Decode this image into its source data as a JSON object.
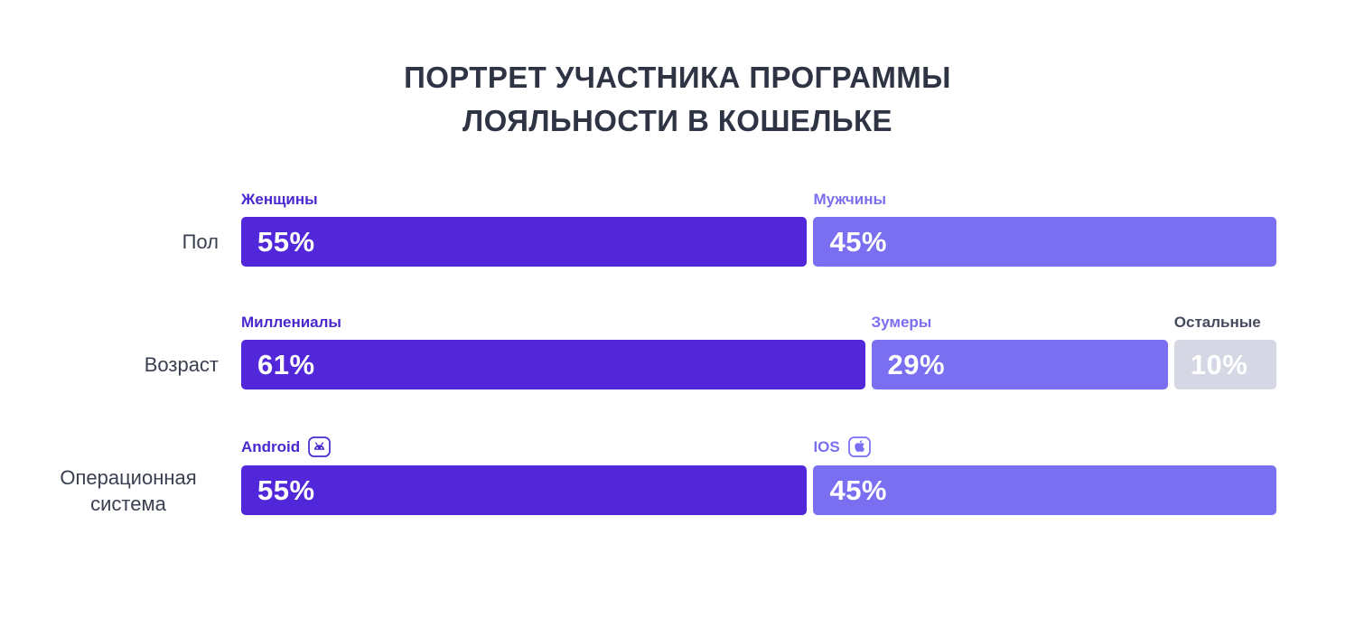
{
  "title": {
    "line1": "ПОРТРЕТ УЧАСТНИКА ПРОГРАММЫ",
    "line2": "ЛОЯЛЬНОСТИ В КОШЕЛЬКЕ"
  },
  "colors": {
    "primary": "#5226d9",
    "secondary": "#7a6ff1",
    "muted": "#d5d8e4",
    "primary_label": "#4a28cf",
    "secondary_label": "#7a6ff1",
    "muted_label": "#454a5c",
    "title_text": "#2e3444",
    "row_label_text": "#3a4050",
    "bar_value_text": "#ffffff",
    "background": "#ffffff"
  },
  "chart_data": {
    "type": "bar",
    "orientation": "horizontal",
    "stacked": true,
    "title": "ПОРТРЕТ УЧАСТНИКА ПРОГРАММЫ ЛОЯЛЬНОСТИ В КОШЕЛЬКЕ",
    "value_suffix": "%",
    "value_range": [
      0,
      100
    ],
    "legend_position": "above-bars",
    "grid": false,
    "rows": [
      {
        "category": "Пол",
        "segments": [
          {
            "label": "Женщины",
            "value": 55,
            "display": "55%",
            "icon": null
          },
          {
            "label": "Мужчины",
            "value": 45,
            "display": "45%",
            "icon": null
          }
        ]
      },
      {
        "category": "Возраст",
        "segments": [
          {
            "label": "Миллениалы",
            "value": 61,
            "display": "61%",
            "icon": null
          },
          {
            "label": "Зумеры",
            "value": 29,
            "display": "29%",
            "icon": null
          },
          {
            "label": "Остальные",
            "value": 10,
            "display": "10%",
            "icon": null
          }
        ]
      },
      {
        "category": "Операционная система",
        "segments": [
          {
            "label": "Android",
            "value": 55,
            "display": "55%",
            "icon": "android-icon"
          },
          {
            "label": "IOS",
            "value": 45,
            "display": "45%",
            "icon": "apple-icon"
          }
        ]
      }
    ]
  }
}
